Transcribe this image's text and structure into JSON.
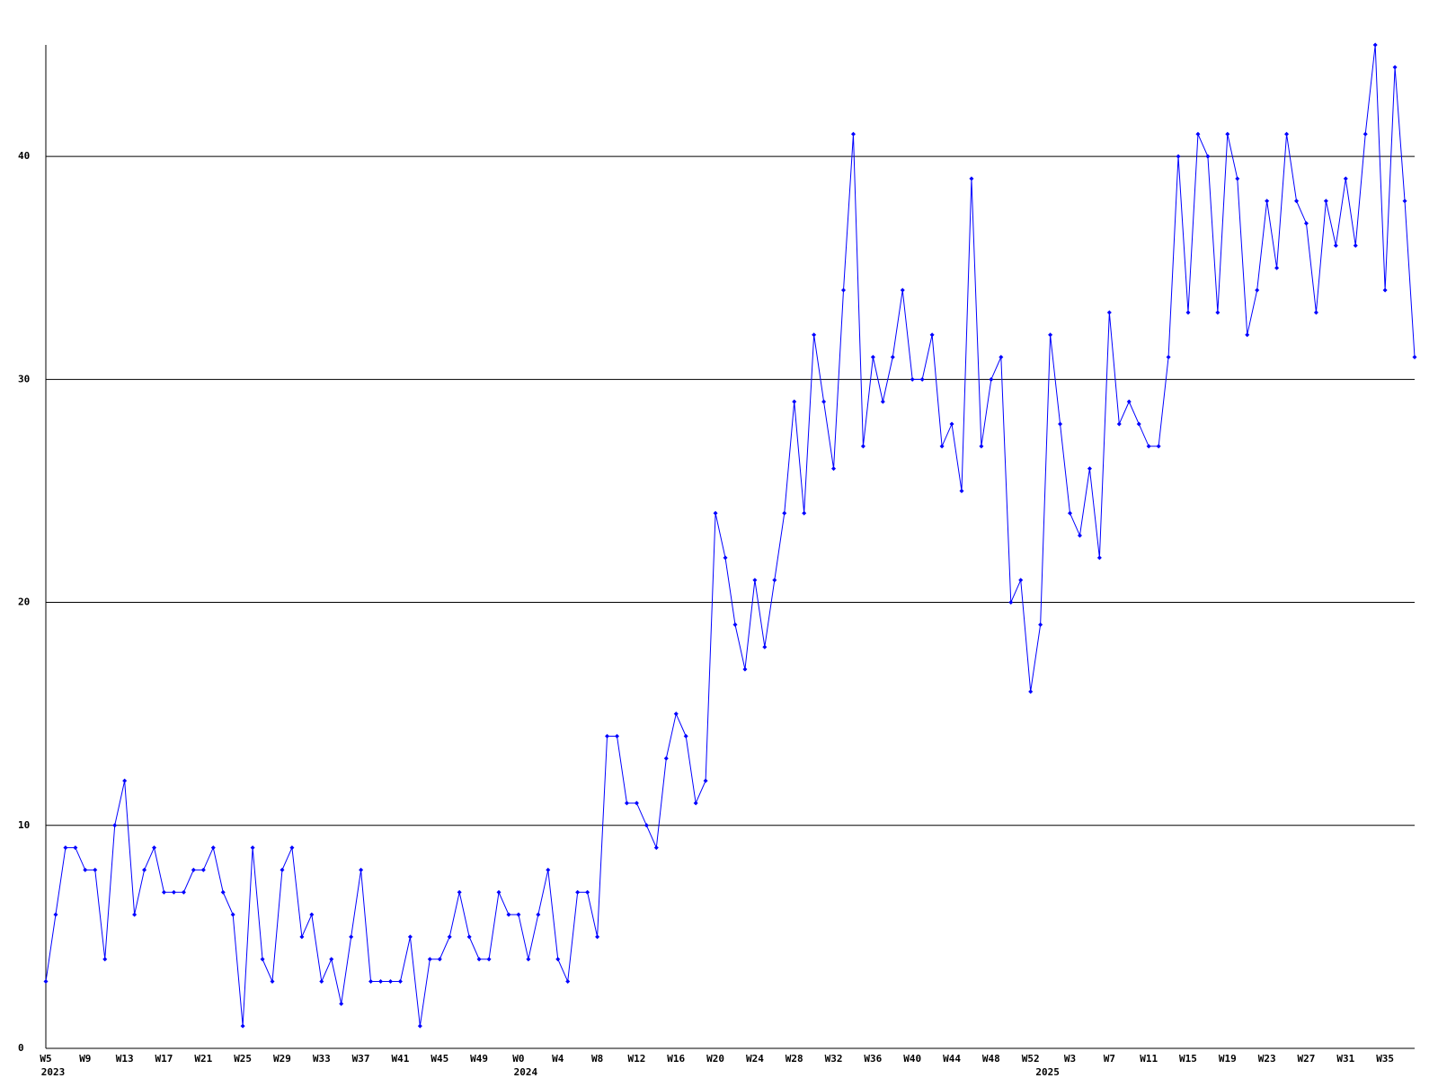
{
  "chart_data": {
    "type": "line",
    "categories": [
      "W5",
      null,
      null,
      null,
      "W9",
      null,
      null,
      null,
      "W13",
      null,
      null,
      null,
      "W17",
      null,
      null,
      null,
      "W21",
      null,
      null,
      null,
      "W25",
      null,
      null,
      null,
      "W29",
      null,
      null,
      null,
      "W33",
      null,
      null,
      null,
      "W37",
      null,
      null,
      null,
      "W41",
      null,
      null,
      null,
      "W45",
      null,
      null,
      null,
      "W49",
      null,
      null,
      null,
      "W0",
      null,
      null,
      null,
      "W4",
      null,
      null,
      null,
      "W8",
      null,
      null,
      null,
      "W12",
      null,
      null,
      null,
      "W16",
      null,
      null,
      null,
      "W20",
      null,
      null,
      null,
      "W24",
      null,
      null,
      null,
      "W28",
      null,
      null,
      null,
      "W32",
      null,
      null,
      null,
      "W36",
      null,
      null,
      null,
      "W40",
      null,
      null,
      null,
      "W44",
      null,
      null,
      null,
      "W48",
      null,
      null,
      null,
      "W52",
      null,
      null,
      null,
      "W3",
      null,
      null,
      null,
      "W7",
      null,
      null,
      null,
      "W11",
      null,
      null,
      null,
      "W15",
      null,
      null,
      null,
      "W19",
      null,
      null,
      null,
      "W23",
      null,
      null,
      null,
      "W27",
      null,
      null,
      null,
      "W31",
      null,
      null,
      null,
      "W35",
      null,
      null,
      null
    ],
    "year_labels": [
      "2023",
      null,
      null,
      null,
      null,
      null,
      null,
      null,
      null,
      null,
      null,
      null,
      null,
      null,
      null,
      null,
      null,
      null,
      null,
      null,
      null,
      null,
      null,
      null,
      null,
      null,
      null,
      null,
      null,
      null,
      null,
      null,
      null,
      null,
      null,
      null,
      null,
      null,
      null,
      null,
      null,
      null,
      null,
      null,
      null,
      null,
      null,
      null,
      "2024",
      null,
      null,
      null,
      null,
      null,
      null,
      null,
      null,
      null,
      null,
      null,
      null,
      null,
      null,
      null,
      null,
      null,
      null,
      null,
      null,
      null,
      null,
      null,
      null,
      null,
      null,
      null,
      null,
      null,
      null,
      null,
      null,
      null,
      null,
      null,
      null,
      null,
      null,
      null,
      null,
      null,
      null,
      null,
      null,
      null,
      null,
      null,
      null,
      null,
      null,
      null,
      null,
      "2025",
      null,
      null,
      null,
      null,
      null,
      null,
      null,
      null,
      null,
      null,
      null,
      null,
      null,
      null,
      null,
      null,
      null,
      null,
      null,
      null,
      null,
      null,
      null,
      null,
      null,
      null,
      null,
      null,
      null,
      null,
      null,
      null,
      null,
      null,
      null,
      null,
      null,
      null
    ],
    "series": [
      {
        "color": "#0000ff",
        "values": [
          3,
          6,
          9,
          9,
          8,
          8,
          4,
          10,
          12,
          6,
          8,
          9,
          7,
          7,
          7,
          8,
          8,
          9,
          7,
          6,
          1,
          9,
          4,
          3,
          8,
          9,
          5,
          6,
          3,
          4,
          2,
          5,
          8,
          3,
          3,
          3,
          3,
          5,
          1,
          4,
          4,
          5,
          7,
          5,
          4,
          4,
          7,
          6,
          6,
          4,
          6,
          8,
          4,
          3,
          7,
          7,
          5,
          14,
          14,
          11,
          11,
          10,
          9,
          13,
          15,
          14,
          11,
          12,
          24,
          22,
          19,
          17,
          21,
          18,
          21,
          24,
          29,
          24,
          32,
          29,
          26,
          34,
          41,
          27,
          31,
          29,
          31,
          34,
          30,
          30,
          32,
          27,
          28,
          25,
          39,
          27,
          30,
          31,
          20,
          21,
          16,
          19,
          32,
          28,
          24,
          23,
          26,
          22,
          33,
          28,
          29,
          28,
          27,
          27,
          31,
          40,
          33,
          41,
          40,
          33,
          41,
          39,
          32,
          34,
          38,
          35,
          41,
          38,
          37,
          33,
          38,
          36,
          39,
          36,
          41,
          45,
          34,
          44,
          38,
          31
        ]
      }
    ],
    "ylim": [
      0,
      45
    ],
    "yticks": [
      0,
      10,
      20,
      30,
      40
    ],
    "grid": true
  }
}
